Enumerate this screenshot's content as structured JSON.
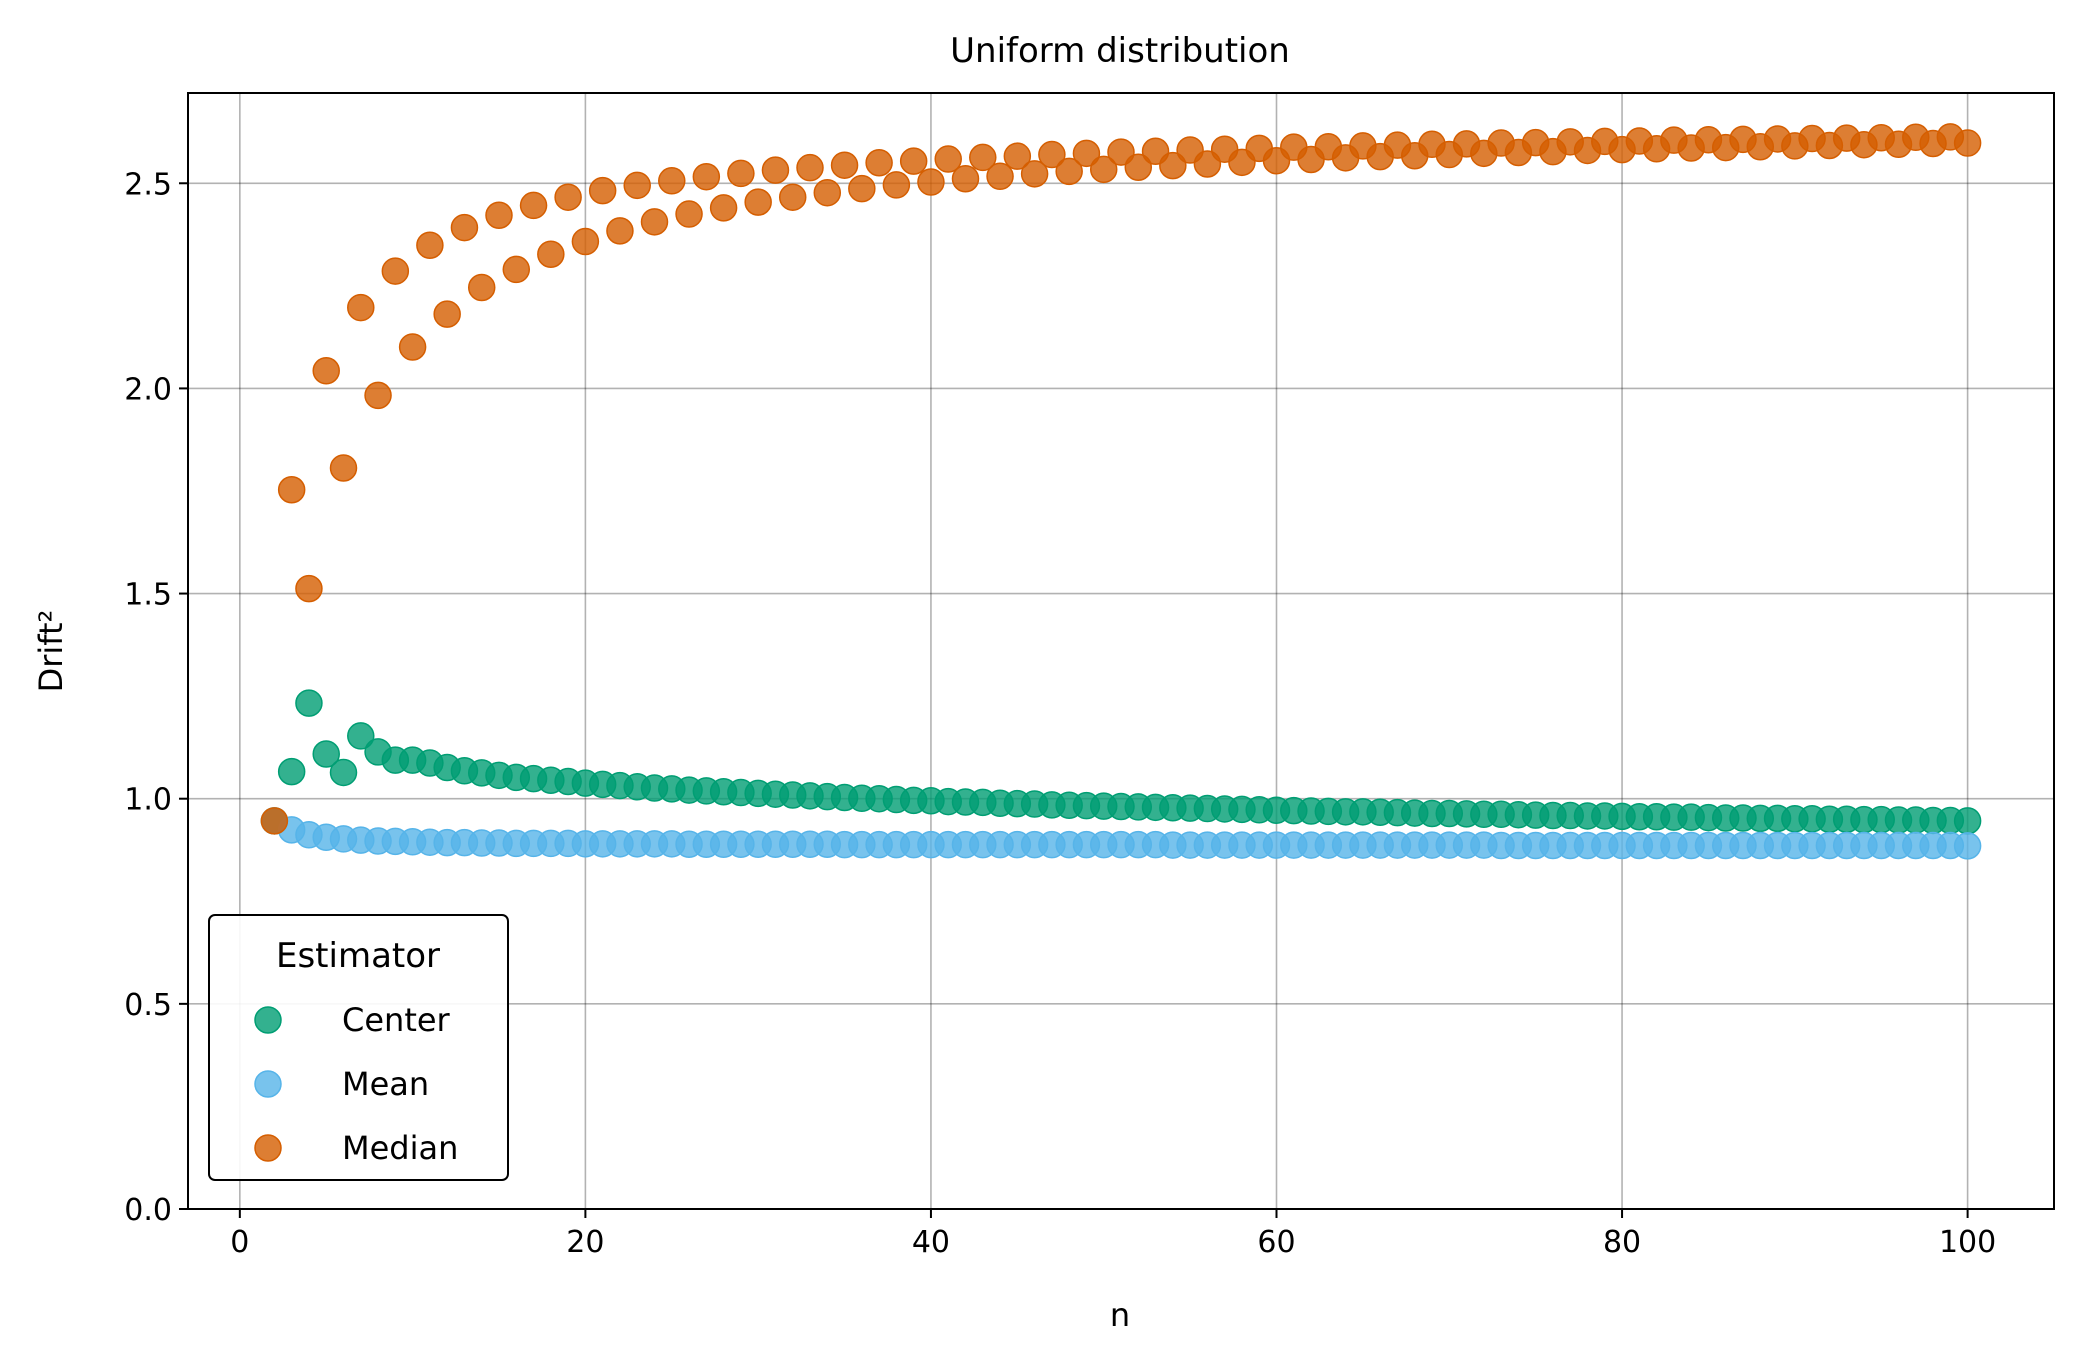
{
  "chart_data": {
    "type": "scatter",
    "title": "Uniform distribution",
    "xlabel": "n",
    "ylabel": "Drift²",
    "xlim": [
      -3,
      105
    ],
    "ylim": [
      0,
      2.72
    ],
    "xticks": [
      0,
      20,
      40,
      60,
      80,
      100
    ],
    "xtick_labels": [
      "0",
      "20",
      "40",
      "60",
      "80",
      "100"
    ],
    "yticks": [
      0.0,
      0.5,
      1.0,
      1.5,
      2.0,
      2.5
    ],
    "ytick_labels": [
      "0.0",
      "0.5",
      "1.0",
      "1.5",
      "2.0",
      "2.5"
    ],
    "grid": true,
    "legend": {
      "title": "Estimator",
      "position": "lower-left"
    },
    "series": [
      {
        "name": "Center",
        "color": "#009e73",
        "x": [
          2,
          3,
          4,
          5,
          6,
          7,
          8,
          9,
          10,
          11,
          12,
          13,
          14,
          15,
          16,
          17,
          18,
          19,
          20,
          21,
          22,
          23,
          24,
          25,
          26,
          27,
          28,
          29,
          30,
          31,
          32,
          33,
          34,
          35,
          36,
          37,
          38,
          39,
          40,
          41,
          42,
          43,
          44,
          45,
          46,
          47,
          48,
          49,
          50,
          51,
          52,
          53,
          54,
          55,
          56,
          57,
          58,
          59,
          60,
          61,
          62,
          63,
          64,
          65,
          66,
          67,
          68,
          69,
          70,
          71,
          72,
          73,
          74,
          75,
          76,
          77,
          78,
          79,
          80,
          81,
          82,
          83,
          84,
          85,
          86,
          87,
          88,
          89,
          90,
          91,
          92,
          93,
          94,
          95,
          96,
          97,
          98,
          99,
          100
        ],
        "values": [
          0.946,
          1.066,
          1.233,
          1.109,
          1.064,
          1.153,
          1.114,
          1.094,
          1.094,
          1.087,
          1.076,
          1.068,
          1.063,
          1.057,
          1.052,
          1.049,
          1.045,
          1.042,
          1.038,
          1.035,
          1.032,
          1.029,
          1.026,
          1.024,
          1.021,
          1.019,
          1.017,
          1.015,
          1.013,
          1.011,
          1.009,
          1.007,
          1.005,
          1.003,
          1.001,
          1.0,
          0.998,
          0.996,
          0.995,
          0.993,
          0.992,
          0.991,
          0.989,
          0.988,
          0.987,
          0.985,
          0.984,
          0.983,
          0.982,
          0.981,
          0.98,
          0.979,
          0.978,
          0.977,
          0.976,
          0.975,
          0.974,
          0.973,
          0.972,
          0.971,
          0.97,
          0.969,
          0.968,
          0.968,
          0.967,
          0.966,
          0.965,
          0.964,
          0.964,
          0.963,
          0.962,
          0.962,
          0.961,
          0.96,
          0.959,
          0.959,
          0.958,
          0.958,
          0.957,
          0.956,
          0.956,
          0.955,
          0.955,
          0.954,
          0.953,
          0.953,
          0.952,
          0.952,
          0.951,
          0.951,
          0.95,
          0.95,
          0.949,
          0.949,
          0.948,
          0.948,
          0.947,
          0.947,
          0.946
        ]
      },
      {
        "name": "Mean",
        "color": "#56b4e9",
        "x": [
          2,
          3,
          4,
          5,
          6,
          7,
          8,
          9,
          10,
          11,
          12,
          13,
          14,
          15,
          16,
          17,
          18,
          19,
          20,
          21,
          22,
          23,
          24,
          25,
          26,
          27,
          28,
          29,
          30,
          31,
          32,
          33,
          34,
          35,
          36,
          37,
          38,
          39,
          40,
          41,
          42,
          43,
          44,
          45,
          46,
          47,
          48,
          49,
          50,
          51,
          52,
          53,
          54,
          55,
          56,
          57,
          58,
          59,
          60,
          61,
          62,
          63,
          64,
          65,
          66,
          67,
          68,
          69,
          70,
          71,
          72,
          73,
          74,
          75,
          76,
          77,
          78,
          79,
          80,
          81,
          82,
          83,
          84,
          85,
          86,
          87,
          88,
          89,
          90,
          91,
          92,
          93,
          94,
          95,
          96,
          97,
          98,
          99,
          100
        ],
        "values": [
          0.946,
          0.924,
          0.912,
          0.906,
          0.902,
          0.899,
          0.897,
          0.896,
          0.895,
          0.894,
          0.893,
          0.893,
          0.892,
          0.892,
          0.891,
          0.891,
          0.891,
          0.891,
          0.89,
          0.89,
          0.89,
          0.89,
          0.89,
          0.89,
          0.889,
          0.889,
          0.889,
          0.889,
          0.889,
          0.889,
          0.889,
          0.889,
          0.889,
          0.888,
          0.888,
          0.888,
          0.888,
          0.888,
          0.888,
          0.888,
          0.888,
          0.888,
          0.888,
          0.888,
          0.888,
          0.888,
          0.888,
          0.888,
          0.888,
          0.888,
          0.888,
          0.888,
          0.887,
          0.887,
          0.887,
          0.887,
          0.887,
          0.887,
          0.887,
          0.887,
          0.887,
          0.887,
          0.887,
          0.887,
          0.887,
          0.887,
          0.887,
          0.887,
          0.887,
          0.887,
          0.887,
          0.886,
          0.886,
          0.886,
          0.886,
          0.886,
          0.886,
          0.886,
          0.886,
          0.886,
          0.886,
          0.886,
          0.886,
          0.886,
          0.886,
          0.886,
          0.886,
          0.886,
          0.886,
          0.886,
          0.886,
          0.886,
          0.886,
          0.886,
          0.886,
          0.886,
          0.886,
          0.886,
          0.885
        ]
      },
      {
        "name": "Median",
        "color": "#d55e00",
        "x": [
          2,
          3,
          4,
          5,
          6,
          7,
          8,
          9,
          10,
          11,
          12,
          13,
          14,
          15,
          16,
          17,
          18,
          19,
          20,
          21,
          22,
          23,
          24,
          25,
          26,
          27,
          28,
          29,
          30,
          31,
          32,
          33,
          34,
          35,
          36,
          37,
          38,
          39,
          40,
          41,
          42,
          43,
          44,
          45,
          46,
          47,
          48,
          49,
          50,
          51,
          52,
          53,
          54,
          55,
          56,
          57,
          58,
          59,
          60,
          61,
          62,
          63,
          64,
          65,
          66,
          67,
          68,
          69,
          70,
          71,
          72,
          73,
          74,
          75,
          76,
          77,
          78,
          79,
          80,
          81,
          82,
          83,
          84,
          85,
          86,
          87,
          88,
          89,
          90,
          91,
          92,
          93,
          94,
          95,
          96,
          97,
          98,
          99,
          100
        ],
        "values": [
          0.946,
          1.753,
          1.512,
          2.043,
          1.806,
          2.197,
          1.983,
          2.286,
          2.101,
          2.349,
          2.181,
          2.392,
          2.246,
          2.422,
          2.29,
          2.446,
          2.327,
          2.466,
          2.358,
          2.482,
          2.384,
          2.495,
          2.406,
          2.506,
          2.425,
          2.516,
          2.44,
          2.524,
          2.454,
          2.532,
          2.466,
          2.538,
          2.477,
          2.544,
          2.487,
          2.55,
          2.496,
          2.554,
          2.503,
          2.559,
          2.511,
          2.563,
          2.517,
          2.566,
          2.523,
          2.57,
          2.529,
          2.573,
          2.534,
          2.576,
          2.539,
          2.578,
          2.543,
          2.581,
          2.547,
          2.583,
          2.551,
          2.585,
          2.555,
          2.588,
          2.558,
          2.589,
          2.562,
          2.591,
          2.565,
          2.593,
          2.567,
          2.595,
          2.57,
          2.596,
          2.573,
          2.598,
          2.575,
          2.599,
          2.577,
          2.601,
          2.58,
          2.602,
          2.582,
          2.603,
          2.584,
          2.605,
          2.586,
          2.606,
          2.587,
          2.607,
          2.589,
          2.608,
          2.591,
          2.609,
          2.592,
          2.61,
          2.594,
          2.611,
          2.595,
          2.612,
          2.597,
          2.613,
          2.598
        ]
      }
    ]
  }
}
